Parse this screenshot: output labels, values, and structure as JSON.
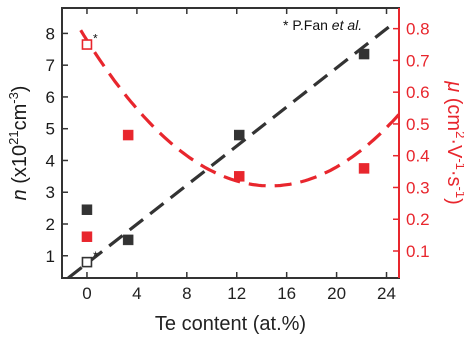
{
  "chart_data": {
    "type": "scatter",
    "xlabel": "Te content (at.%)",
    "xlim": [
      -2,
      25
    ],
    "xticks": [
      0,
      4,
      8,
      12,
      16,
      20,
      24
    ],
    "y_left": {
      "label_parts": [
        "n (x10",
        "21",
        "cm",
        "-3",
        ")"
      ],
      "ylim": [
        0.3,
        8.8
      ],
      "ticks": [
        1,
        2,
        3,
        4,
        5,
        6,
        7,
        8
      ],
      "color": "#1a1a1a"
    },
    "y_right": {
      "label_parts": [
        "μ (cm",
        "2",
        "·V",
        "-1",
        "·s",
        "-1",
        ")"
      ],
      "ylim": [
        0.015,
        0.865
      ],
      "ticks": [
        0.1,
        0.2,
        0.3,
        0.4,
        0.5,
        0.6,
        0.7,
        0.8
      ],
      "color": "#e8262d"
    },
    "annotation": {
      "parts": [
        "* P.Fan ",
        "et al."
      ]
    },
    "series": [
      {
        "axis": "left",
        "color": "#333333",
        "marker": "filled-square",
        "points": [
          [
            0,
            2.45
          ],
          [
            3.3,
            1.5
          ],
          [
            12.2,
            4.8
          ],
          [
            22.2,
            7.35
          ]
        ]
      },
      {
        "axis": "left",
        "color": "#333333",
        "marker": "open-square",
        "label": "*",
        "points": [
          [
            0,
            0.8
          ]
        ]
      },
      {
        "axis": "right",
        "color": "#e8262d",
        "marker": "filled-square",
        "points": [
          [
            0,
            0.145
          ],
          [
            3.3,
            0.465
          ],
          [
            12.2,
            0.335
          ],
          [
            22.2,
            0.36
          ]
        ]
      },
      {
        "axis": "right",
        "color": "#e8262d",
        "marker": "open-square",
        "label": "*",
        "points": [
          [
            0,
            0.75
          ]
        ]
      }
    ],
    "fit_lines": [
      {
        "axis": "left",
        "color": "#333333",
        "style": "dashed",
        "kind": "linear",
        "from": [
          -1.5,
          0.3
        ],
        "to": [
          24.5,
          8.3
        ]
      },
      {
        "axis": "right",
        "color": "#e8262d",
        "style": "dashed",
        "kind": "quadratic",
        "vertex": [
          14.7,
          0.305
        ],
        "through": [
          -0.5,
          0.795
        ],
        "x_range": [
          -0.5,
          25
        ]
      }
    ]
  }
}
